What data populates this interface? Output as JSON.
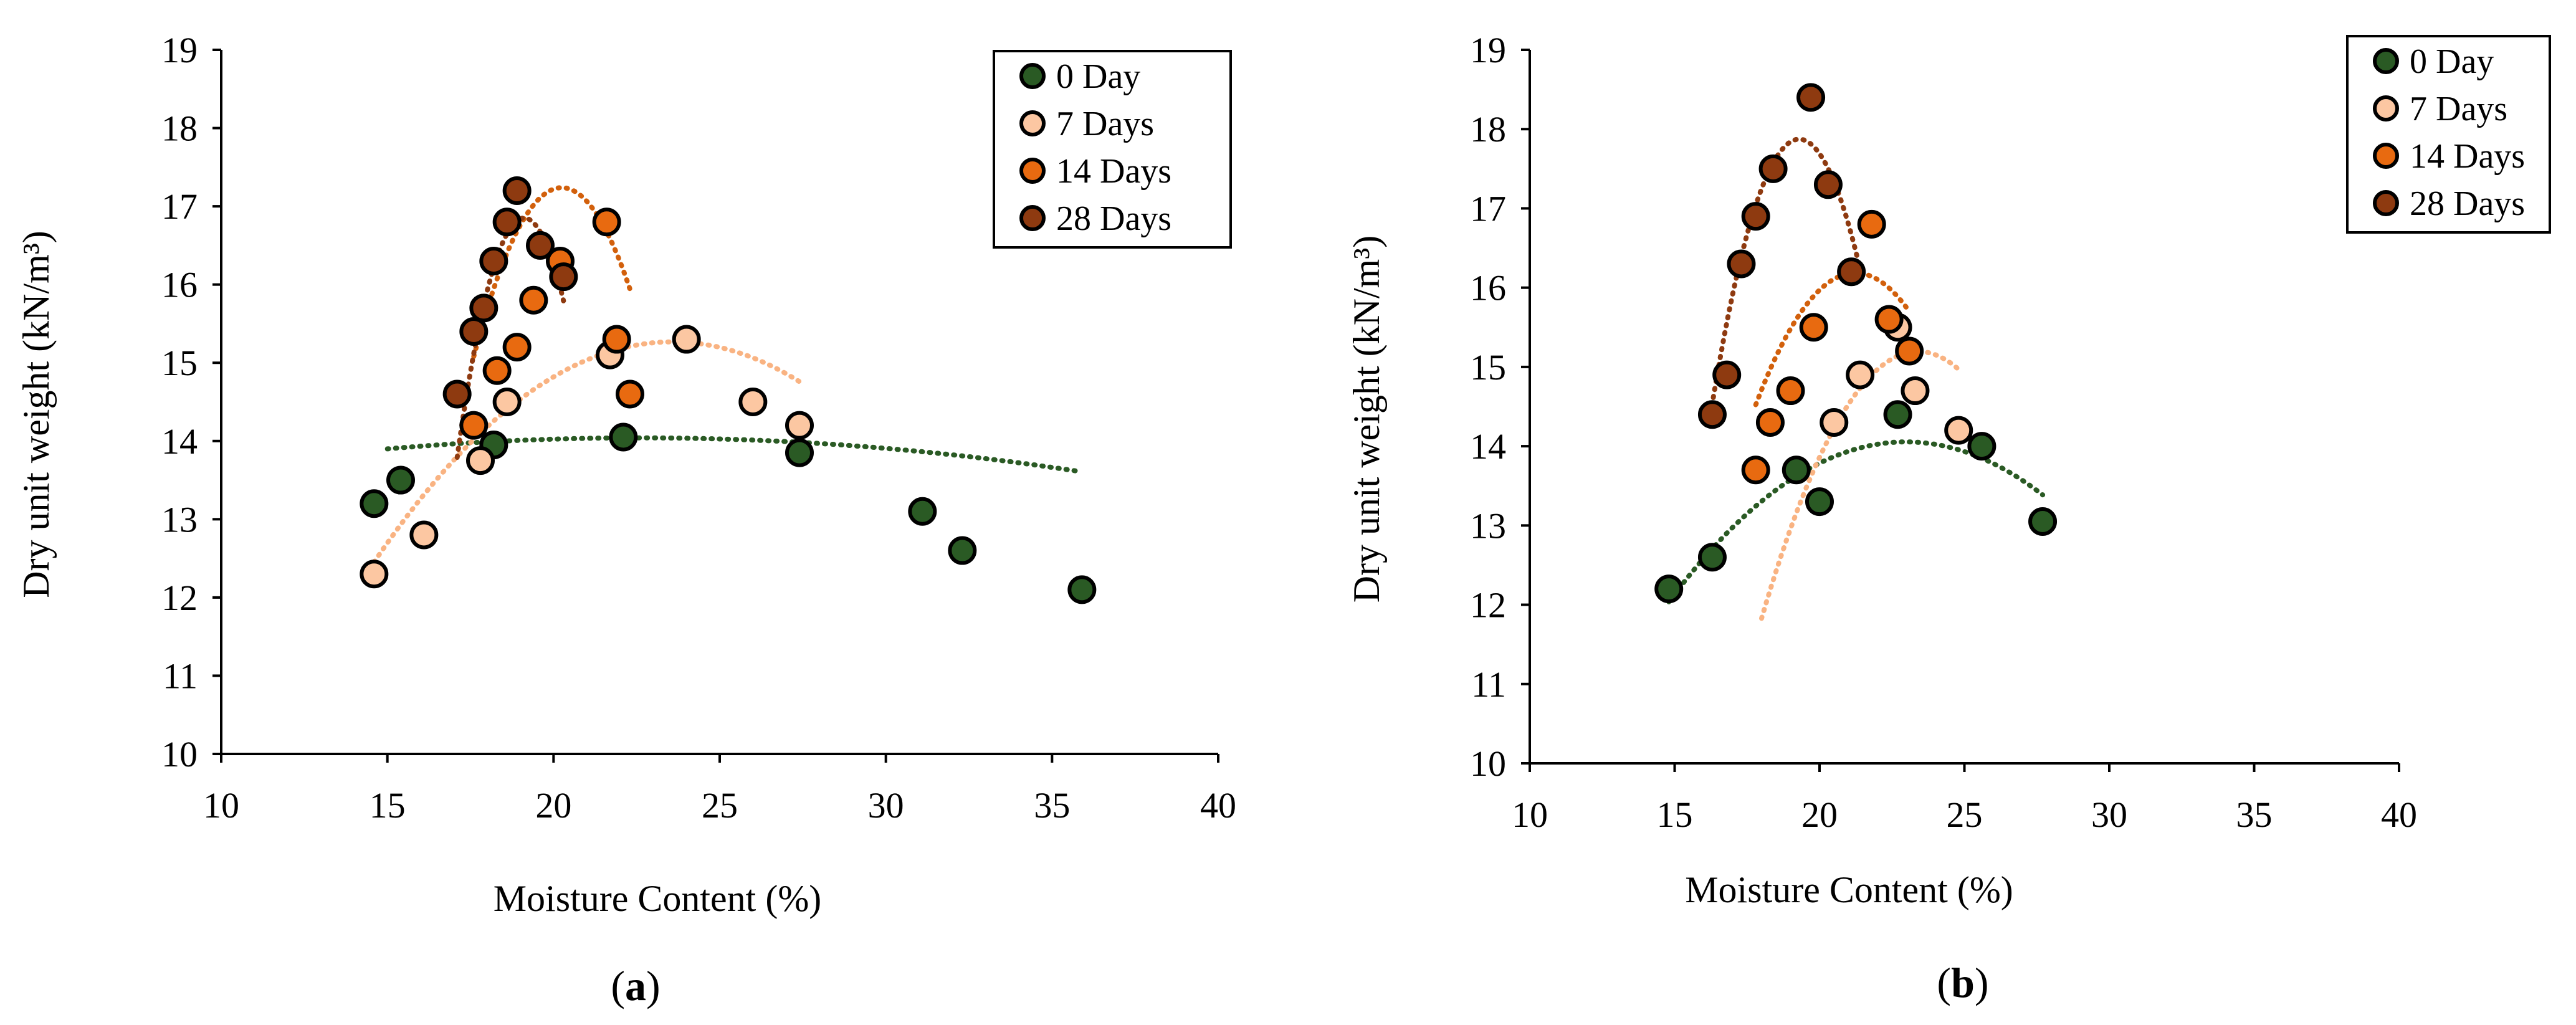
{
  "chart_data": [
    {
      "type": "scatter",
      "panel_label": "a",
      "xlabel": "Moisture Content (%)",
      "ylabel": "Dry unit weight (kN/m³)",
      "xlim": [
        10,
        40
      ],
      "ylim": [
        10,
        19
      ],
      "xticks": [
        10,
        15,
        20,
        25,
        30,
        35,
        40
      ],
      "yticks": [
        10,
        11,
        12,
        13,
        14,
        15,
        16,
        17,
        18,
        19
      ],
      "legend_position": "top-right",
      "series": [
        {
          "name": "0 Day",
          "color": "#2a5a24",
          "trend_color": "#2a5a24",
          "points": [
            [
              14.6,
              13.2
            ],
            [
              15.4,
              13.5
            ],
            [
              18.2,
              13.95
            ],
            [
              22.1,
              14.05
            ],
            [
              27.4,
              13.85
            ],
            [
              31.1,
              13.1
            ],
            [
              32.3,
              12.6
            ],
            [
              35.9,
              12.1
            ]
          ],
          "trend": {
            "coef": [
              -0.00245,
              0.1107,
              12.79
            ],
            "x_range": [
              15.0,
              35.9
            ]
          }
        },
        {
          "name": "7 Days",
          "color": "#fcc7a2",
          "trend_color": "#f9b382",
          "points": [
            [
              14.6,
              12.3
            ],
            [
              16.1,
              12.8
            ],
            [
              17.8,
              13.75
            ],
            [
              18.6,
              14.5
            ],
            [
              21.7,
              15.1
            ],
            [
              24.0,
              15.3
            ],
            [
              26.0,
              14.5
            ],
            [
              27.4,
              14.2
            ]
          ],
          "trend": {
            "coef": [
              -0.0349,
              1.646,
              -4.14
            ],
            "x_range": [
              14.6,
              27.4
            ]
          }
        },
        {
          "name": "14 Days",
          "color": "#e86a10",
          "trend_color": "#d2600c",
          "points": [
            [
              17.6,
              14.2
            ],
            [
              18.3,
              14.9
            ],
            [
              18.9,
              15.2
            ],
            [
              19.4,
              15.8
            ],
            [
              20.2,
              16.3
            ],
            [
              21.6,
              16.8
            ],
            [
              21.9,
              15.3
            ],
            [
              22.3,
              14.6
            ]
          ],
          "trend": {
            "coef": [
              -0.3081,
              12.476,
              -109.06
            ],
            "x_range": [
              17.6,
              22.3
            ]
          }
        },
        {
          "name": "28 Days",
          "color": "#8e3a10",
          "trend_color": "#8e3a10",
          "points": [
            [
              17.1,
              14.6
            ],
            [
              17.6,
              15.4
            ],
            [
              17.9,
              15.7
            ],
            [
              18.2,
              16.3
            ],
            [
              18.6,
              16.8
            ],
            [
              18.9,
              17.2
            ],
            [
              19.6,
              16.5
            ],
            [
              20.3,
              16.1
            ]
          ],
          "trend": {
            "coef": [
              -0.7536,
              28.81,
              -258.5
            ],
            "x_range": [
              17.1,
              20.3
            ]
          }
        }
      ]
    },
    {
      "type": "scatter",
      "panel_label": "b",
      "xlabel": "Moisture Content (%)",
      "ylabel": "Dry unit weight (kN/m³)",
      "xlim": [
        10,
        40
      ],
      "ylim": [
        10,
        19
      ],
      "xticks": [
        10,
        15,
        20,
        25,
        30,
        35,
        40
      ],
      "yticks": [
        10,
        11,
        12,
        13,
        14,
        15,
        16,
        17,
        18,
        19
      ],
      "legend_position": "top-right",
      "series": [
        {
          "name": "0 Day",
          "color": "#2a5a24",
          "trend_color": "#2a5a24",
          "points": [
            [
              14.8,
              12.2
            ],
            [
              16.3,
              12.6
            ],
            [
              19.2,
              13.7
            ],
            [
              20.0,
              13.3
            ],
            [
              22.7,
              14.4
            ],
            [
              25.6,
              14.0
            ],
            [
              27.7,
              13.05
            ]
          ],
          "trend": {
            "coef": [
              -0.0301,
              1.3838,
              -1.85
            ],
            "x_range": [
              14.8,
              27.7
            ]
          }
        },
        {
          "name": "7 Days",
          "color": "#fcc7a2",
          "trend_color": "#f9b382",
          "points": [
            [
              20.5,
              14.3
            ],
            [
              21.4,
              14.9
            ],
            [
              22.7,
              15.5
            ],
            [
              23.3,
              14.7
            ],
            [
              24.8,
              14.2
            ]
          ],
          "trend": {
            "coef": [
              -0.1154,
              5.401,
              -48.0
            ],
            "x_range": [
              18.0,
              24.8
            ]
          }
        },
        {
          "name": "14 Days",
          "color": "#e86a10",
          "trend_color": "#d2600c",
          "points": [
            [
              17.8,
              13.7
            ],
            [
              18.3,
              14.3
            ],
            [
              19.0,
              14.7
            ],
            [
              19.8,
              15.5
            ],
            [
              21.8,
              16.8
            ],
            [
              22.4,
              15.6
            ],
            [
              23.1,
              15.2
            ]
          ],
          "trend": {
            "coef": [
              -0.1406,
              5.972,
              -47.23
            ],
            "x_range": [
              17.8,
              23.1
            ]
          }
        },
        {
          "name": "28 Days",
          "color": "#8e3a10",
          "trend_color": "#8e3a10",
          "points": [
            [
              16.3,
              14.4
            ],
            [
              16.8,
              14.9
            ],
            [
              17.3,
              16.3
            ],
            [
              17.8,
              16.9
            ],
            [
              18.4,
              17.5
            ],
            [
              19.7,
              18.4
            ],
            [
              20.3,
              17.3
            ],
            [
              21.1,
              16.2
            ]
          ],
          "trend": {
            "coef": [
              -0.3711,
              14.323,
              -120.33
            ],
            "x_range": [
              16.2,
              21.3
            ]
          }
        }
      ]
    }
  ]
}
